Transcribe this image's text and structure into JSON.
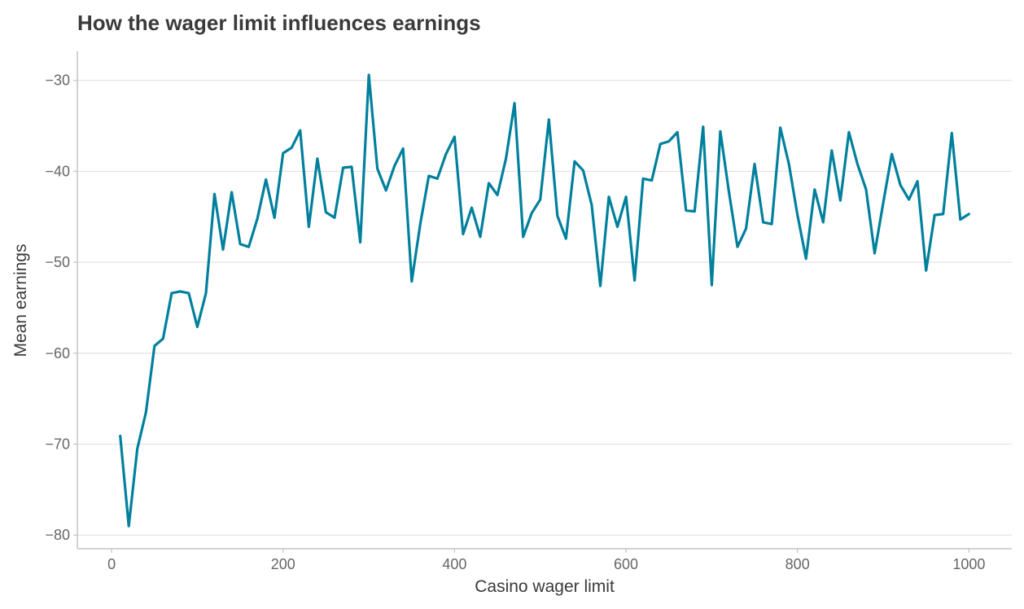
{
  "chart_data": {
    "type": "line",
    "title": "How the wager limit influences earnings",
    "xlabel": "Casino wager limit",
    "ylabel": "Mean earnings",
    "xlim": [
      -40,
      1050
    ],
    "ylim": [
      -81.5,
      -26.8
    ],
    "xticks": [
      0,
      200,
      400,
      600,
      800,
      1000
    ],
    "yticks": [
      -80,
      -70,
      -60,
      -50,
      -40,
      -30
    ],
    "xtick_labels": [
      "0",
      "200",
      "400",
      "600",
      "800",
      "1000"
    ],
    "ytick_labels": [
      "−80",
      "−70",
      "−60",
      "−50",
      "−40",
      "−30"
    ],
    "grid": "y",
    "line_color": "#00809d",
    "x": [
      10,
      20,
      30,
      40,
      50,
      60,
      70,
      80,
      90,
      100,
      110,
      120,
      130,
      140,
      150,
      160,
      170,
      180,
      190,
      200,
      210,
      220,
      230,
      240,
      250,
      260,
      270,
      280,
      290,
      300,
      310,
      320,
      330,
      340,
      350,
      360,
      370,
      380,
      390,
      400,
      410,
      420,
      430,
      440,
      450,
      460,
      470,
      480,
      490,
      500,
      510,
      520,
      530,
      540,
      550,
      560,
      570,
      580,
      590,
      600,
      610,
      620,
      630,
      640,
      650,
      660,
      670,
      680,
      690,
      700,
      710,
      720,
      730,
      740,
      750,
      760,
      770,
      780,
      790,
      800,
      810,
      820,
      830,
      840,
      850,
      860,
      870,
      880,
      890,
      900,
      910,
      920,
      930,
      940,
      950,
      960,
      970,
      980,
      990,
      1000
    ],
    "y": [
      -69.1,
      -79.0,
      -70.5,
      -66.5,
      -59.2,
      -58.4,
      -53.4,
      -53.2,
      -53.4,
      -57.1,
      -53.4,
      -42.5,
      -48.6,
      -42.3,
      -48.0,
      -48.3,
      -45.2,
      -40.9,
      -45.1,
      -38.0,
      -37.4,
      -35.5,
      -46.1,
      -38.6,
      -44.5,
      -45.1,
      -39.6,
      -39.5,
      -47.8,
      -29.4,
      -39.7,
      -42.1,
      -39.4,
      -37.5,
      -52.1,
      -45.8,
      -40.5,
      -40.8,
      -38.1,
      -36.2,
      -46.9,
      -44.0,
      -47.2,
      -41.3,
      -42.6,
      -38.6,
      -32.5,
      -47.2,
      -44.6,
      -43.1,
      -34.3,
      -44.9,
      -47.4,
      -38.9,
      -39.9,
      -43.7,
      -52.6,
      -42.8,
      -46.1,
      -42.8,
      -52.0,
      -40.8,
      -41.0,
      -37.0,
      -36.7,
      -35.7,
      -44.3,
      -44.4,
      -35.1,
      -52.5,
      -35.6,
      -42.2,
      -48.3,
      -46.3,
      -39.2,
      -45.6,
      -45.8,
      -35.2,
      -39.2,
      -44.8,
      -49.6,
      -42.0,
      -45.6,
      -37.7,
      -43.2,
      -35.7,
      -39.2,
      -42.0,
      -49.0,
      -43.5,
      -38.1,
      -41.5,
      -43.1,
      -41.1,
      -50.9,
      -44.8,
      -44.7,
      -35.8,
      -45.3,
      -44.7
    ]
  }
}
